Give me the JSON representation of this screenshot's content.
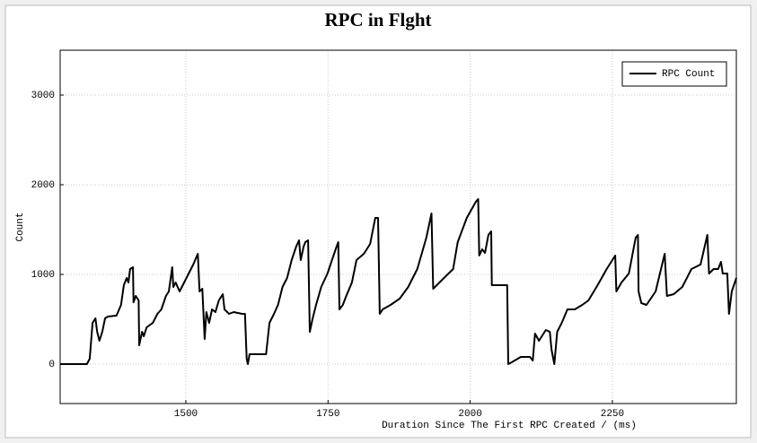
{
  "chart_data": {
    "type": "line",
    "title": "RPC in Flght",
    "xlabel": "Duration Since The First RPC Created / (ms)",
    "ylabel": "Count",
    "xlim": [
      1279,
      2468
    ],
    "ylim": [
      -440,
      3500
    ],
    "xticks": [
      1500,
      1750,
      2000,
      2250
    ],
    "yticks": [
      0,
      1000,
      2000,
      3000
    ],
    "grid": true,
    "legend": "upper right",
    "x": [
      1279,
      1326,
      1331,
      1336,
      1341,
      1344,
      1348,
      1353,
      1358,
      1363,
      1378,
      1386,
      1391,
      1396,
      1399,
      1402,
      1407,
      1408,
      1412,
      1417,
      1418,
      1423,
      1426,
      1431,
      1442,
      1450,
      1457,
      1465,
      1470,
      1476,
      1478,
      1482,
      1489,
      1497,
      1505,
      1513,
      1521,
      1524,
      1529,
      1533,
      1536,
      1541,
      1546,
      1552,
      1558,
      1565,
      1568,
      1576,
      1584,
      1599,
      1604,
      1607,
      1609,
      1612,
      1639,
      1641,
      1647,
      1655,
      1662,
      1670,
      1678,
      1686,
      1694,
      1699,
      1702,
      1707,
      1710,
      1715,
      1718,
      1723,
      1729,
      1738,
      1749,
      1757,
      1765,
      1768,
      1770,
      1776,
      1782,
      1792,
      1800,
      1813,
      1824,
      1833,
      1838,
      1841,
      1846,
      1860,
      1876,
      1891,
      1907,
      1923,
      1932,
      1935,
      1946,
      1962,
      1970,
      1978,
      1994,
      2010,
      2014,
      2016,
      2021,
      2026,
      2032,
      2037,
      2038,
      2060,
      2065,
      2067,
      2073,
      2089,
      2105,
      2110,
      2114,
      2121,
      2133,
      2140,
      2143,
      2148,
      2153,
      2161,
      2171,
      2184,
      2197,
      2208,
      2224,
      2240,
      2255,
      2257,
      2266,
      2279,
      2291,
      2295,
      2296,
      2301,
      2310,
      2326,
      2342,
      2346,
      2358,
      2373,
      2389,
      2405,
      2417,
      2420,
      2428,
      2436,
      2441,
      2444,
      2452,
      2455,
      2460,
      2468
    ],
    "series": [
      {
        "name": "RPC Count",
        "color": "#000000",
        "values": [
          0,
          0,
          60,
          460,
          510,
          360,
          260,
          360,
          510,
          530,
          540,
          660,
          880,
          960,
          910,
          1060,
          1080,
          690,
          760,
          710,
          210,
          360,
          310,
          410,
          460,
          560,
          610,
          760,
          810,
          1080,
          860,
          910,
          810,
          910,
          1010,
          1110,
          1230,
          810,
          840,
          280,
          580,
          460,
          610,
          580,
          710,
          780,
          610,
          560,
          580,
          560,
          560,
          60,
          0,
          110,
          110,
          110,
          460,
          560,
          660,
          860,
          960,
          1160,
          1310,
          1380,
          1160,
          1310,
          1360,
          1380,
          360,
          510,
          660,
          860,
          1010,
          1160,
          1310,
          1360,
          610,
          660,
          760,
          910,
          1160,
          1230,
          1340,
          1630,
          1630,
          560,
          610,
          660,
          730,
          860,
          1060,
          1410,
          1680,
          840,
          910,
          1010,
          1060,
          1360,
          1630,
          1810,
          1840,
          1210,
          1280,
          1240,
          1440,
          1480,
          880,
          880,
          880,
          0,
          20,
          80,
          80,
          40,
          340,
          260,
          380,
          360,
          160,
          0,
          360,
          460,
          610,
          610,
          660,
          710,
          880,
          1060,
          1210,
          810,
          910,
          1010,
          1410,
          1440,
          810,
          680,
          660,
          810,
          1230,
          760,
          780,
          860,
          1060,
          1110,
          1440,
          1010,
          1060,
          1060,
          1140,
          1010,
          1010,
          560,
          810,
          960
        ]
      }
    ]
  }
}
